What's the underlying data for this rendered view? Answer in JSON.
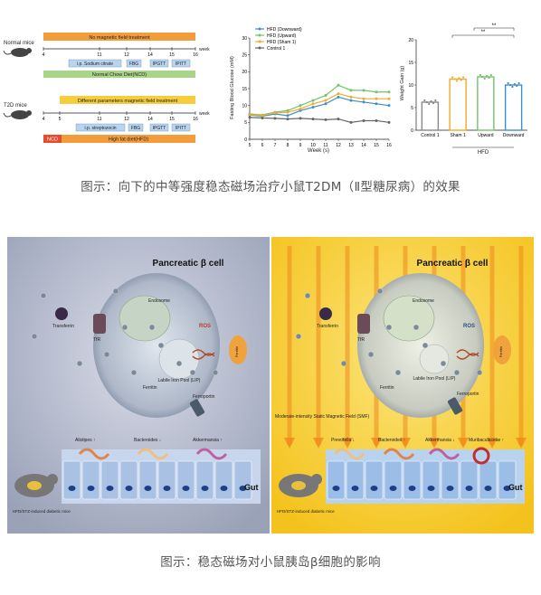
{
  "caption1": "图示：向下的中等强度稳态磁场治疗小鼠T2DM（Ⅱ型糖尿病）的效果",
  "caption2": "图示：稳态磁场对小鼠胰岛β细胞的影响",
  "timeline": {
    "normal_label": "Normal mice",
    "t2d_label": "T2D mice",
    "week_label": "week",
    "normal_bar": "No magnetic field treatment",
    "normal_diet": "Normal Chow Diet(NCD)",
    "t2d_bar": "Different parameters magnetic field treatment",
    "t2d_ncd": "NCD",
    "t2d_diet": "High fat diet(HFD)",
    "normal_inj": "i.p. Sodium citrate",
    "t2d_inj": "i.p. streptozocin",
    "fbg_n": "FBG",
    "ipgtt_n": "IPGTT",
    "iptt_n": "IPITT",
    "fbg_t": "FBG",
    "ipgtt_t": "IPGTT",
    "iptt_t": "IPITT",
    "ticks_n": [
      "4",
      "11",
      "12",
      "14",
      "15",
      "16"
    ],
    "ticks_t": [
      "4",
      "5",
      "11",
      "12",
      "14",
      "15",
      "16"
    ]
  },
  "glucose_chart": {
    "ylabel": "Fasting Blood Glucose (mM)",
    "xlabel": "Week (s)",
    "x_ticks": [
      "5",
      "6",
      "7",
      "8",
      "9",
      "10",
      "11",
      "12",
      "13",
      "14",
      "15",
      "16"
    ],
    "y_ticks": [
      "0",
      "5",
      "10",
      "15",
      "20",
      "25",
      "30"
    ],
    "legend": [
      "HFD (Downward)",
      "HFD (Upward)",
      "HFD (Sham 1)",
      "Control 1"
    ]
  },
  "chart_data": [
    {
      "type": "line",
      "ylabel": "Fasting Blood Glucose (mM)",
      "xlabel": "Week (s)",
      "x": [
        5,
        6,
        7,
        8,
        9,
        10,
        11,
        12,
        13,
        14,
        15,
        16
      ],
      "ylim": [
        0,
        30
      ],
      "series": [
        {
          "name": "HFD (Downward)",
          "color": "#3a8fd0",
          "values": [
            7.2,
            6.8,
            7.5,
            7.0,
            8.5,
            9.5,
            10.5,
            12.5,
            11.5,
            11.0,
            10.5,
            10.0
          ]
        },
        {
          "name": "HFD (Upward)",
          "color": "#6fc46a",
          "values": [
            7.5,
            7.2,
            8.0,
            8.5,
            10.0,
            11.5,
            13.0,
            16.0,
            14.5,
            14.5,
            14.0,
            14.0
          ]
        },
        {
          "name": "HFD (Sham 1)",
          "color": "#f2a92e",
          "values": [
            7.3,
            7.0,
            7.8,
            8.0,
            9.0,
            10.5,
            11.5,
            13.5,
            12.5,
            12.0,
            12.0,
            12.0
          ]
        },
        {
          "name": "Control 1",
          "color": "#666666",
          "values": [
            6.5,
            6.3,
            6.2,
            6.0,
            6.2,
            6.0,
            5.8,
            6.0,
            5.0,
            5.5,
            5.5,
            5.0
          ]
        }
      ]
    },
    {
      "type": "bar",
      "ylabel": "Weight Gain (g)",
      "categories": [
        "Control 1",
        "Sham 1",
        "Upward",
        "Downward"
      ],
      "group_label": "HFD",
      "values": [
        6.2,
        11.3,
        11.8,
        10.0
      ],
      "colors": [
        "#888888",
        "#f2a92e",
        "#6fc46a",
        "#3a8fd0"
      ],
      "ylim": [
        0,
        20
      ],
      "y_ticks": [
        "0",
        "5",
        "10",
        "15",
        "20"
      ]
    }
  ],
  "bar_chart": {
    "ylabel": "Weight Gain (g)",
    "categories": [
      "Control 1",
      "Sham 1",
      "Upward",
      "Downward"
    ],
    "group": "HFD",
    "sig": [
      "**",
      "**"
    ]
  },
  "panel_left": {
    "title": "Pancreatic β cell",
    "gut": "Gut",
    "mouse": "HFD/STZ-induced diabetic mice",
    "transferrin": "Transferrin",
    "tfr": "TfR",
    "endosome": "Endosome",
    "ros": "ROS",
    "lip": "Labile Iron Pool (LIP)",
    "ferritin": "Ferritin",
    "ferroportin": "Ferroportin",
    "ferritin_ext": "Ferritin",
    "bacteria": [
      "Alistipes ↑",
      "Bacteroides ↓",
      "Akkermansia ↑"
    ]
  },
  "panel_right": {
    "title": "Pancreatic β cell",
    "gut": "Gut",
    "mouse": "HFD/STZ-induced diabetic mice",
    "transferrin": "Transferrin",
    "tfr": "TfR",
    "endosome": "Endosome",
    "ros": "ROS",
    "lip": "Labile Iron Pool (LIP)",
    "ferritin": "Ferritin",
    "ferroportin": "Ferroportin",
    "ferritin_ext": "Ferritin",
    "field": "Moderate-intensity Static Magnetic Field (SMF)",
    "bacteria": [
      "Prevotella ↓",
      "Bacteroides ↑",
      "Akkermansia ↓",
      "Muribaculaceae ↑"
    ]
  }
}
